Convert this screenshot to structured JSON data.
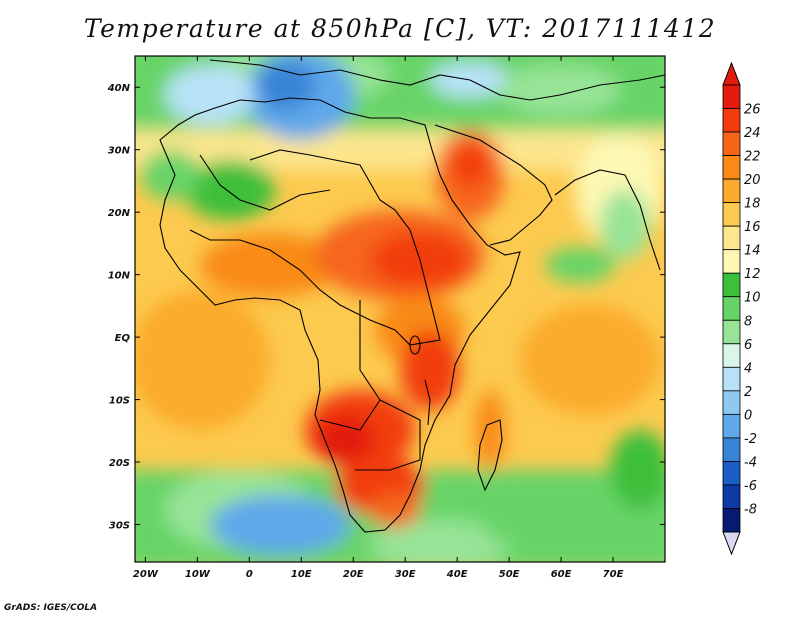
{
  "title": "Temperature at 850hPa [C], VT: 2017111412",
  "credit": "GrADS: IGES/COLA",
  "map": {
    "lat_ticks": [
      "40N",
      "30N",
      "20N",
      "10N",
      "EQ",
      "10S",
      "20S",
      "30S"
    ],
    "lon_ticks": [
      "20W",
      "10W",
      "0",
      "10E",
      "20E",
      "30E",
      "40E",
      "50E",
      "60E",
      "70E"
    ],
    "lon_range": [
      -22,
      80
    ],
    "lat_range": [
      -36,
      45
    ]
  },
  "colorbar": {
    "labels": [
      "26",
      "24",
      "22",
      "20",
      "18",
      "16",
      "14",
      "12",
      "10",
      "8",
      "6",
      "4",
      "2",
      "0",
      "-2",
      "-4",
      "-6",
      "-8"
    ],
    "colors": [
      "#e31a0e",
      "#f23c0b",
      "#f6661a",
      "#f98a18",
      "#fbab2c",
      "#fcca4f",
      "#fde68e",
      "#fdf8b4",
      "#3cbf3a",
      "#68d468",
      "#97e497",
      "#d9f7e8",
      "#b8e2f8",
      "#8fc8f0",
      "#5fa8ea",
      "#3784d6",
      "#1c5ec5",
      "#0d3aa5",
      "#061a74"
    ],
    "top_arrow_color": "#e31a0e",
    "bottom_arrow_color": "#d9d8f5"
  }
}
